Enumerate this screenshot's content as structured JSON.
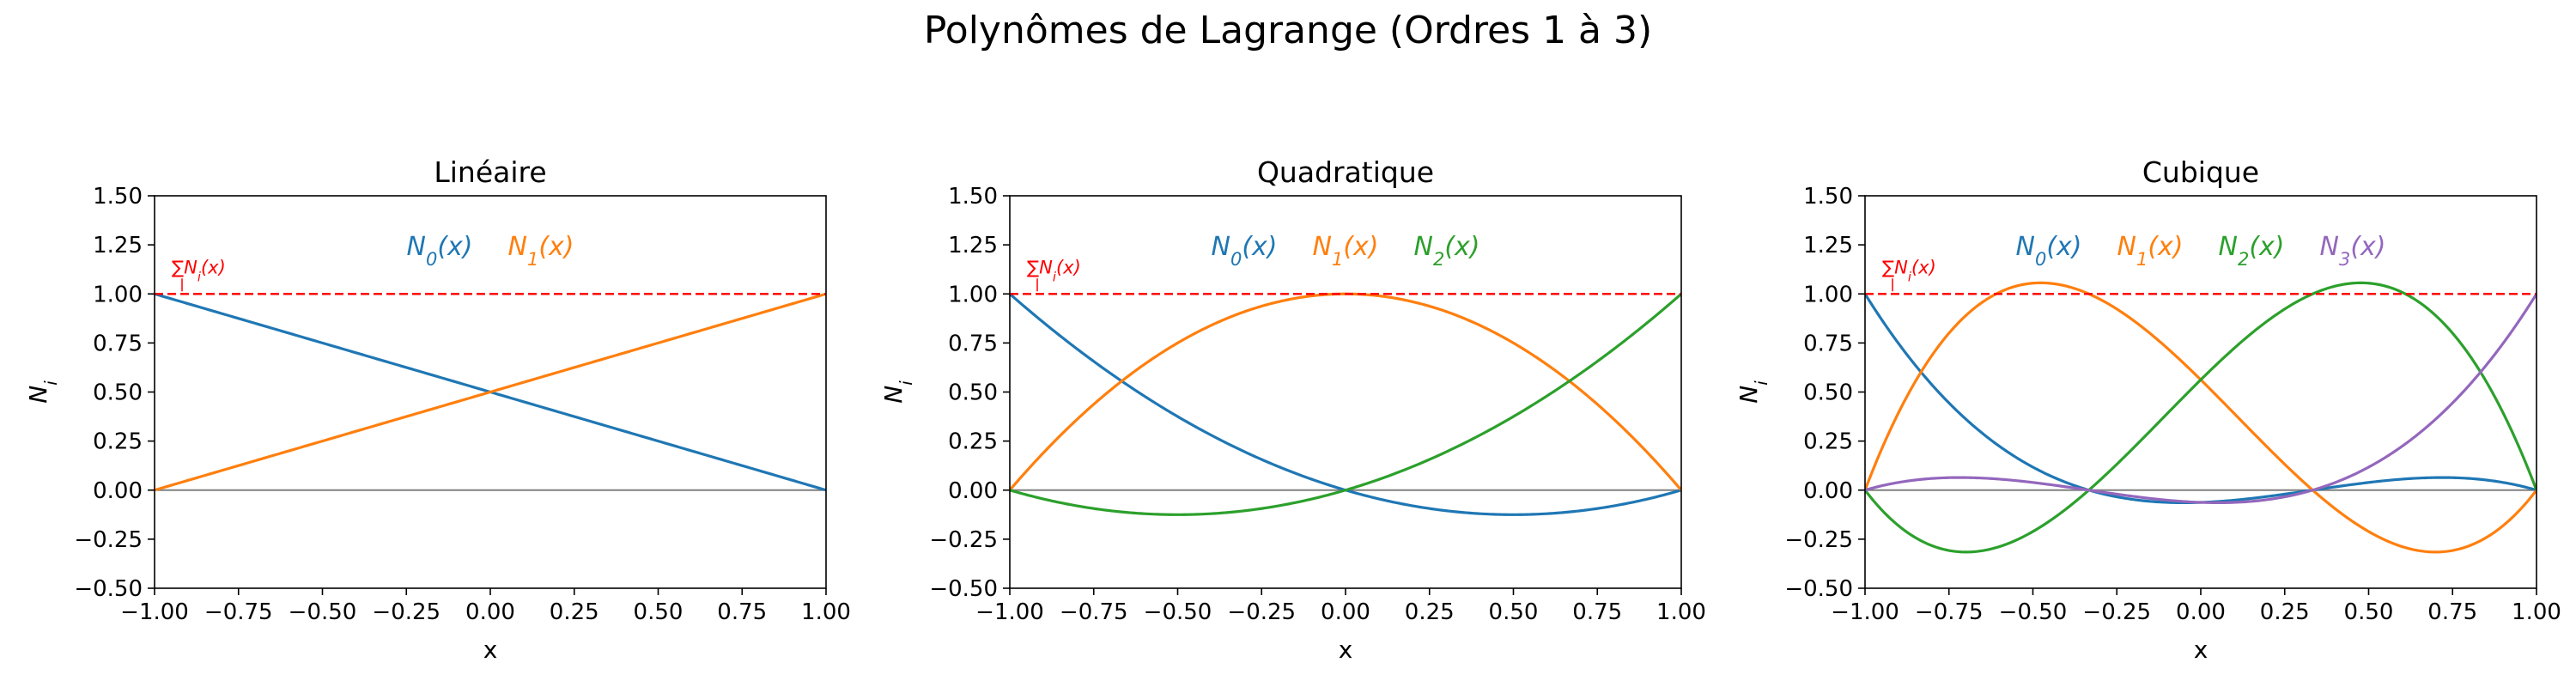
{
  "title": "Polynômes de Lagrange (Ordres 1 à 3)",
  "colors": [
    "#1f77b4",
    "#ff7f0e",
    "#2ca02c",
    "#9467bd"
  ],
  "sum_color": "#ff0000",
  "zero_line_color": "#808080",
  "chart_data": [
    {
      "type": "line",
      "title": "Linéaire",
      "xlabel": "x",
      "ylabel": "N",
      "ylabel_sub": "i",
      "xlim": [
        -1,
        1
      ],
      "ylim": [
        -0.5,
        1.5
      ],
      "xticks": [
        "−1.00",
        "−0.75",
        "−0.50",
        "−0.25",
        "0.00",
        "0.25",
        "0.50",
        "0.75",
        "1.00"
      ],
      "yticks": [
        "−0.50",
        "−0.25",
        "0.00",
        "0.25",
        "0.50",
        "0.75",
        "1.00",
        "1.25",
        "1.50"
      ],
      "nodes": [
        -1,
        1
      ],
      "series": [
        {
          "name": "N",
          "sub": "0",
          "arg": "(x)"
        },
        {
          "name": "N",
          "sub": "1",
          "arg": "(x)"
        }
      ],
      "sum_line": {
        "y": 1.0,
        "sum": "∑",
        "label": "N",
        "sub": "i",
        "arg": "(x)"
      },
      "legend": "top-center",
      "grid": false
    },
    {
      "type": "line",
      "title": "Quadratique",
      "xlabel": "x",
      "ylabel": "N",
      "ylabel_sub": "i",
      "xlim": [
        -1,
        1
      ],
      "ylim": [
        -0.5,
        1.5
      ],
      "xticks": [
        "−1.00",
        "−0.75",
        "−0.50",
        "−0.25",
        "0.00",
        "0.25",
        "0.50",
        "0.75",
        "1.00"
      ],
      "yticks": [
        "−0.50",
        "−0.25",
        "0.00",
        "0.25",
        "0.50",
        "0.75",
        "1.00",
        "1.25",
        "1.50"
      ],
      "nodes": [
        -1,
        0,
        1
      ],
      "series": [
        {
          "name": "N",
          "sub": "0",
          "arg": "(x)"
        },
        {
          "name": "N",
          "sub": "1",
          "arg": "(x)"
        },
        {
          "name": "N",
          "sub": "2",
          "arg": "(x)"
        }
      ],
      "sum_line": {
        "y": 1.0,
        "sum": "∑",
        "label": "N",
        "sub": "i",
        "arg": "(x)"
      },
      "legend": "top-center",
      "grid": false
    },
    {
      "type": "line",
      "title": "Cubique",
      "xlabel": "x",
      "ylabel": "N",
      "ylabel_sub": "i",
      "xlim": [
        -1,
        1
      ],
      "ylim": [
        -0.5,
        1.5
      ],
      "xticks": [
        "−1.00",
        "−0.75",
        "−0.50",
        "−0.25",
        "0.00",
        "0.25",
        "0.50",
        "0.75",
        "1.00"
      ],
      "yticks": [
        "−0.50",
        "−0.25",
        "0.00",
        "0.25",
        "0.50",
        "0.75",
        "1.00",
        "1.25",
        "1.50"
      ],
      "nodes": [
        -1,
        -0.3333333333,
        0.3333333333,
        1
      ],
      "series": [
        {
          "name": "N",
          "sub": "0",
          "arg": "(x)"
        },
        {
          "name": "N",
          "sub": "1",
          "arg": "(x)"
        },
        {
          "name": "N",
          "sub": "2",
          "arg": "(x)"
        },
        {
          "name": "N",
          "sub": "3",
          "arg": "(x)"
        }
      ],
      "sum_line": {
        "y": 1.0,
        "sum": "∑",
        "label": "N",
        "sub": "i",
        "arg": "(x)"
      },
      "legend": "top-center",
      "grid": false
    }
  ]
}
